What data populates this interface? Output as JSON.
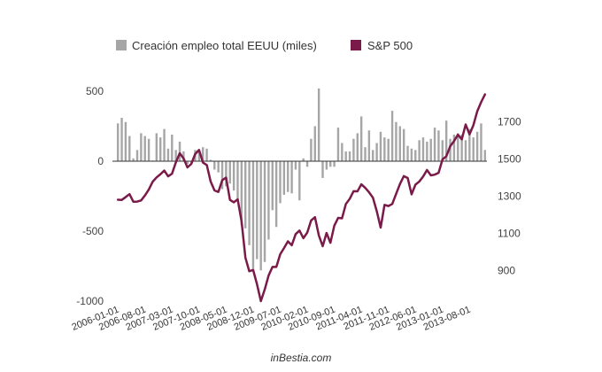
{
  "chart_data": {
    "type": "bar+line",
    "x": [
      "2006-01",
      "2006-02",
      "2006-03",
      "2006-04",
      "2006-05",
      "2006-06",
      "2006-07",
      "2006-08",
      "2006-09",
      "2006-10",
      "2006-11",
      "2006-12",
      "2007-01",
      "2007-02",
      "2007-03",
      "2007-04",
      "2007-05",
      "2007-06",
      "2007-07",
      "2007-08",
      "2007-09",
      "2007-10",
      "2007-11",
      "2007-12",
      "2008-01",
      "2008-02",
      "2008-03",
      "2008-04",
      "2008-05",
      "2008-06",
      "2008-07",
      "2008-08",
      "2008-09",
      "2008-10",
      "2008-11",
      "2008-12",
      "2009-01",
      "2009-02",
      "2009-03",
      "2009-04",
      "2009-05",
      "2009-06",
      "2009-07",
      "2009-08",
      "2009-09",
      "2009-10",
      "2009-11",
      "2009-12",
      "2010-01",
      "2010-02",
      "2010-03",
      "2010-04",
      "2010-05",
      "2010-06",
      "2010-07",
      "2010-08",
      "2010-09",
      "2010-10",
      "2010-11",
      "2010-12",
      "2011-01",
      "2011-02",
      "2011-03",
      "2011-04",
      "2011-05",
      "2011-06",
      "2011-07",
      "2011-08",
      "2011-09",
      "2011-10",
      "2011-11",
      "2011-12",
      "2012-01",
      "2012-02",
      "2012-03",
      "2012-04",
      "2012-05",
      "2012-06",
      "2012-07",
      "2012-08",
      "2012-09",
      "2012-10",
      "2012-11",
      "2012-12",
      "2013-01",
      "2013-02",
      "2013-03",
      "2013-04",
      "2013-05",
      "2013-06",
      "2013-07",
      "2013-08",
      "2013-09",
      "2013-10",
      "2013-11",
      "2013-12"
    ],
    "series": [
      {
        "name": "Creación empleo total EEUU (miles)",
        "kind": "bar",
        "axis": "left",
        "color": "#a6a6a6",
        "values": [
          270,
          310,
          280,
          180,
          20,
          80,
          200,
          180,
          160,
          5,
          200,
          170,
          230,
          90,
          190,
          80,
          140,
          70,
          -20,
          -10,
          80,
          80,
          100,
          90,
          10,
          -60,
          -80,
          -200,
          -180,
          -160,
          -210,
          -270,
          -460,
          -480,
          -600,
          -770,
          -700,
          -780,
          -720,
          -560,
          -350,
          -470,
          -300,
          -240,
          -220,
          -230,
          -60,
          -280,
          20,
          -40,
          160,
          250,
          520,
          -120,
          -60,
          -40,
          -40,
          240,
          130,
          70,
          70,
          160,
          200,
          320,
          100,
          220,
          80,
          130,
          210,
          170,
          160,
          360,
          280,
          250,
          230,
          110,
          90,
          80,
          150,
          170,
          140,
          160,
          240,
          220,
          150,
          290,
          160,
          190,
          200,
          190,
          150,
          230,
          170,
          210,
          270,
          80
        ]
      },
      {
        "name": "S&P 500",
        "kind": "line",
        "axis": "right",
        "color": "#7a1a48",
        "values": [
          1281,
          1280,
          1295,
          1311,
          1270,
          1271,
          1277,
          1304,
          1336,
          1378,
          1401,
          1418,
          1438,
          1407,
          1421,
          1482,
          1531,
          1503,
          1455,
          1474,
          1527,
          1549,
          1481,
          1468,
          1379,
          1331,
          1323,
          1386,
          1400,
          1280,
          1267,
          1283,
          1165,
          969,
          896,
          903,
          826,
          735,
          798,
          873,
          919,
          919,
          987,
          1021,
          1057,
          1036,
          1096,
          1115,
          1074,
          1104,
          1169,
          1187,
          1089,
          1031,
          1102,
          1049,
          1141,
          1183,
          1181,
          1258,
          1286,
          1327,
          1326,
          1364,
          1345,
          1321,
          1292,
          1219,
          1131,
          1253,
          1247,
          1258,
          1312,
          1366,
          1408,
          1398,
          1310,
          1362,
          1379,
          1406,
          1441,
          1412,
          1416,
          1426,
          1498,
          1515,
          1569,
          1597,
          1631,
          1606,
          1686,
          1633,
          1682,
          1757,
          1806,
          1848
        ]
      }
    ],
    "xticks": [
      "2006-01-01",
      "2006-08-01",
      "2007-03-01",
      "2007-10-01",
      "2008-05-01",
      "2008-12-01",
      "2009-07-01",
      "2010-02-01",
      "2010-09-01",
      "2011-04-01",
      "2011-11-01",
      "2012-06-01",
      "2013-01-01",
      "2013-08-01"
    ],
    "yticks_left": [
      "500",
      "0",
      "-500",
      "-1000"
    ],
    "yticks_right": [
      "1700",
      "1500",
      "1300",
      "1100",
      "900"
    ],
    "ylim_left": [
      -1000,
      500
    ],
    "ylim_right": [
      735,
      1865
    ],
    "legend_position": "top",
    "grid": false
  },
  "legend": {
    "items": [
      {
        "label": "Creación empleo total EEUU (miles)",
        "color": "#a6a6a6"
      },
      {
        "label": "S&P 500",
        "color": "#7a1a48"
      }
    ]
  },
  "credit": "inBestia.com"
}
